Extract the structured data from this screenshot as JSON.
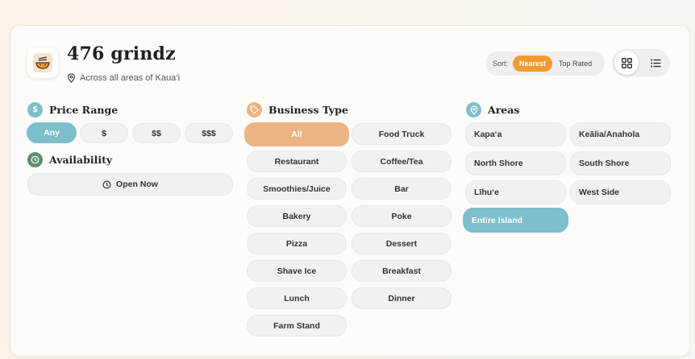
{
  "header": {
    "title": "476 grindz",
    "subtitle": "Across all areas of Kaua‘i",
    "logo_icon": "bowl-icon"
  },
  "sort": {
    "label": "Sort:",
    "options": [
      "Nearest",
      "Top Rated"
    ],
    "selected": "Nearest"
  },
  "view": {
    "options": [
      "grid-icon",
      "list-icon"
    ],
    "selected": "grid"
  },
  "price": {
    "title": "Price Range",
    "options": [
      "Any",
      "$",
      "$$",
      "$$$"
    ],
    "selected": "Any"
  },
  "availability": {
    "title": "Availability",
    "button": "Open Now"
  },
  "business": {
    "title": "Business Type",
    "options": [
      "All",
      "Food Truck",
      "Restaurant",
      "Coffee/Tea",
      "Smoothies/Juice",
      "Bar",
      "Bakery",
      "Poke",
      "Pizza",
      "Dessert",
      "Shave Ice",
      "Breakfast",
      "Lunch",
      "Dinner",
      "Farm Stand"
    ],
    "selected": "All"
  },
  "areas": {
    "title": "Areas",
    "options": [
      "Kapa‘a",
      "Keālia/Anahola",
      "North Shore",
      "South Shore",
      "Līhu‘e",
      "West Side",
      "Entire Island"
    ],
    "selected": "Entire Island"
  },
  "colors": {
    "accent_orange": "#f29a2e",
    "accent_blue": "#7ebfcc",
    "soft_orange": "#ecb484"
  }
}
